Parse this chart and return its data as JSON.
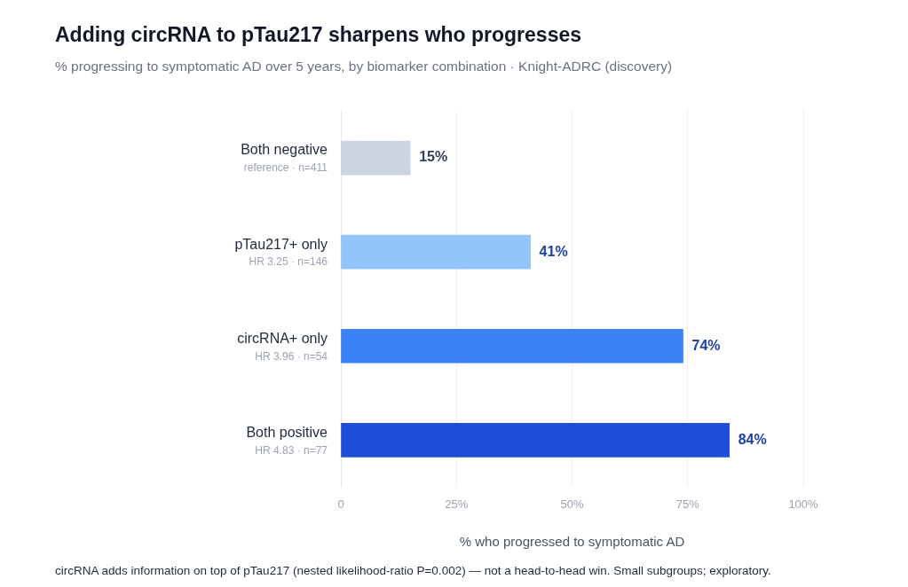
{
  "chart_data": {
    "type": "bar",
    "orientation": "horizontal",
    "title": "Adding circRNA to pTau217 sharpens who progresses",
    "subtitle": "% progressing to symptomatic AD over 5 years, by biomarker combination · Knight-ADRC (discovery)",
    "categories": [
      "Both negative\nreference · n=411",
      "pTau217+ only\nHR 3.25 · n=146",
      "circRNA+ only\nHR 3.96 · n=54",
      "Both positive\nHR 4.83 · n=77"
    ],
    "values": [
      15,
      41,
      74,
      84
    ],
    "colors": [
      "#cbd5e1",
      "#93c5fd",
      "#3b82f6",
      "#1d4ed8"
    ],
    "value_labels": [
      "15%",
      "41%",
      "74%",
      "84%"
    ],
    "xlabel": "% who progressed to symptomatic AD",
    "xlim": [
      0,
      100
    ],
    "xticks": [
      0,
      {
        "value": 25,
        "label": "25%"
      },
      {
        "value": 50,
        "label": "50%"
      },
      {
        "value": 75,
        "label": "75%"
      },
      {
        "value": 100,
        "label": "100%"
      }
    ],
    "grid": "x",
    "legend": false,
    "annotations": [
      "circRNA adds information on top of pTau217 (nested likelihood-ratio P=0.002) — not a head-to-head win. Small subgroups; exploratory."
    ]
  }
}
